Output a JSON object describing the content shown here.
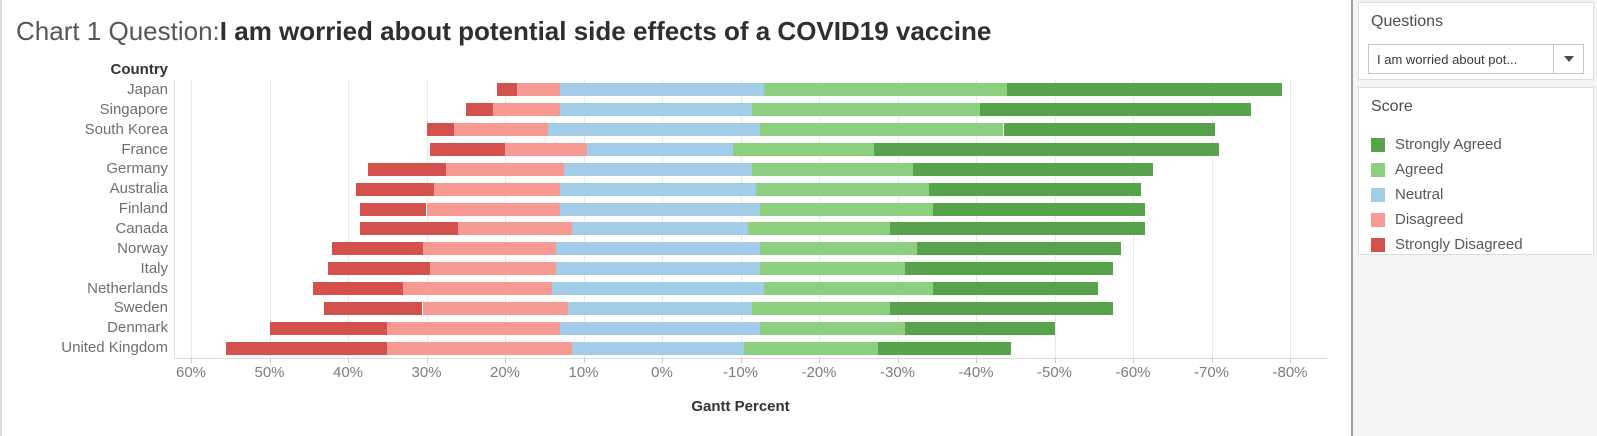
{
  "title": {
    "prefix": "Chart 1 Question:",
    "question": "I am worried about potential side effects of a COVID19 vaccine"
  },
  "questions_panel": {
    "title": "Questions",
    "selected_question": "I am worried about pot..."
  },
  "legend": {
    "title": "Score",
    "entries": [
      {
        "key": "strongly_agreed",
        "label": "Strongly Agreed",
        "color": "#56a34c"
      },
      {
        "key": "agreed",
        "label": "Agreed",
        "color": "#8ccf7e"
      },
      {
        "key": "neutral",
        "label": "Neutral",
        "color": "#a3cce9"
      },
      {
        "key": "disagreed",
        "label": "Disagreed",
        "color": "#f69a93"
      },
      {
        "key": "strongly_disagreed",
        "label": "Strongly Disagreed",
        "color": "#d4504d"
      }
    ]
  },
  "chart_data": {
    "type": "bar",
    "subtype": "diverging-stacked-horizontal",
    "title": "Chart 1 Question:I am worried about potential side effects of a COVID19 vaccine",
    "xlabel": "Gantt Percent",
    "ylabel": "Country",
    "legend_position": "right",
    "grid": "vertical",
    "x_axis_reversed": true,
    "xlim": [
      60,
      -80
    ],
    "x_ticks": [
      {
        "label": "60%",
        "value": 60
      },
      {
        "label": "50%",
        "value": 50
      },
      {
        "label": "40%",
        "value": 40
      },
      {
        "label": "30%",
        "value": 30
      },
      {
        "label": "20%",
        "value": 20
      },
      {
        "label": "10%",
        "value": 10
      },
      {
        "label": "0%",
        "value": 0
      },
      {
        "label": "-10%",
        "value": -10
      },
      {
        "label": "-20%",
        "value": -20
      },
      {
        "label": "-30%",
        "value": -30
      },
      {
        "label": "-40%",
        "value": -40
      },
      {
        "label": "-50%",
        "value": -50
      },
      {
        "label": "-60%",
        "value": -60
      },
      {
        "label": "-70%",
        "value": -70
      },
      {
        "label": "-80%",
        "value": -80
      }
    ],
    "categories": [
      "Japan",
      "Singapore",
      "South Korea",
      "France",
      "Germany",
      "Australia",
      "Finland",
      "Canada",
      "Norway",
      "Italy",
      "Netherlands",
      "Sweden",
      "Denmark",
      "United Kingdom"
    ],
    "bar_start_pct": [
      21,
      25,
      30,
      29.5,
      37.5,
      39,
      38.5,
      38.5,
      42,
      42.5,
      44.5,
      43,
      50,
      55.5
    ],
    "series": [
      {
        "key": "strongly_disagreed",
        "name": "Strongly Disagreed",
        "color": "#d4504d",
        "values": [
          2.5,
          3.5,
          3.5,
          9.5,
          10,
          10,
          8.5,
          12.5,
          11.5,
          13,
          11.5,
          12.5,
          15,
          20.5
        ]
      },
      {
        "key": "disagreed",
        "name": "Disagreed",
        "color": "#f69a93",
        "values": [
          5.5,
          8.5,
          12,
          10.5,
          15,
          16,
          17,
          14.5,
          17,
          16,
          19,
          18.5,
          22,
          23.5
        ]
      },
      {
        "key": "neutral",
        "name": "Neutral",
        "color": "#a3cce9",
        "values": [
          26,
          24.5,
          27,
          18.5,
          24,
          25,
          25.5,
          22.5,
          26,
          26,
          27,
          23.5,
          25.5,
          22
        ]
      },
      {
        "key": "agreed",
        "name": "Agreed",
        "color": "#8ccf7e",
        "values": [
          31,
          29,
          31,
          18,
          20.5,
          22,
          22,
          18,
          20,
          18.5,
          21.5,
          17.5,
          18.5,
          17
        ]
      },
      {
        "key": "strongly_agreed",
        "name": "Strongly Agreed",
        "color": "#56a34c",
        "values": [
          35,
          34.5,
          27,
          44,
          30.5,
          27,
          27,
          32.5,
          26,
          26.5,
          21,
          28.5,
          19,
          17
        ]
      }
    ]
  }
}
